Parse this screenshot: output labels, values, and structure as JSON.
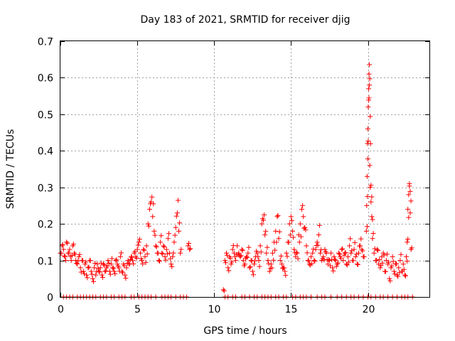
{
  "chart_data": {
    "type": "scatter",
    "title": "Day 183 of 2021, SRMTID for receiver djig",
    "xlabel": "GPS time / hours",
    "ylabel": "SRMTID / TECUs",
    "xlim": [
      0,
      24
    ],
    "ylim": [
      0,
      0.7
    ],
    "xticks": [
      0,
      5,
      10,
      15,
      20
    ],
    "xtick_labels": [
      "0",
      "5",
      "10",
      "15",
      "20"
    ],
    "yticks": [
      0,
      0.1,
      0.2,
      0.3,
      0.4,
      0.5,
      0.6,
      0.7
    ],
    "ytick_labels": [
      "0",
      "0.1",
      "0.2",
      "0.3",
      "0.4",
      "0.5",
      "0.6",
      "0.7"
    ],
    "grid": true,
    "marker": "+",
    "color": "#ff0000",
    "series": [
      {
        "name": "SRMTID",
        "points": [
          [
            0.0,
            0.12
          ],
          [
            0.1,
            0.14
          ],
          [
            0.2,
            0.13
          ],
          [
            0.3,
            0.11
          ],
          [
            0.4,
            0.15
          ],
          [
            0.5,
            0.12
          ],
          [
            0.6,
            0.13
          ],
          [
            0.7,
            0.1
          ],
          [
            0.8,
            0.14
          ],
          [
            0.9,
            0.12
          ],
          [
            1.0,
            0.1
          ],
          [
            1.1,
            0.09
          ],
          [
            1.2,
            0.11
          ],
          [
            1.3,
            0.08
          ],
          [
            1.4,
            0.1
          ],
          [
            1.5,
            0.07
          ],
          [
            1.6,
            0.09
          ],
          [
            1.7,
            0.06
          ],
          [
            1.8,
            0.08
          ],
          [
            1.9,
            0.1
          ],
          [
            2.0,
            0.07
          ],
          [
            2.1,
            0.05
          ],
          [
            2.2,
            0.08
          ],
          [
            2.3,
            0.06
          ],
          [
            2.4,
            0.09
          ],
          [
            2.5,
            0.07
          ],
          [
            2.6,
            0.08
          ],
          [
            2.7,
            0.06
          ],
          [
            2.8,
            0.09
          ],
          [
            2.9,
            0.07
          ],
          [
            3.0,
            0.08
          ],
          [
            3.1,
            0.1
          ],
          [
            3.2,
            0.07
          ],
          [
            3.3,
            0.09
          ],
          [
            3.4,
            0.08
          ],
          [
            3.5,
            0.07
          ],
          [
            3.6,
            0.1
          ],
          [
            3.7,
            0.09
          ],
          [
            3.8,
            0.08
          ],
          [
            3.9,
            0.11
          ],
          [
            4.0,
            0.07
          ],
          [
            4.1,
            0.09
          ],
          [
            4.2,
            0.06
          ],
          [
            4.3,
            0.08
          ],
          [
            4.4,
            0.1
          ],
          [
            4.5,
            0.09
          ],
          [
            4.6,
            0.11
          ],
          [
            4.7,
            0.1
          ],
          [
            4.8,
            0.12
          ],
          [
            4.9,
            0.11
          ],
          [
            5.0,
            0.13
          ],
          [
            5.1,
            0.15
          ],
          [
            5.2,
            0.12
          ],
          [
            5.3,
            0.1
          ],
          [
            5.4,
            0.13
          ],
          [
            5.5,
            0.11
          ],
          [
            5.6,
            0.14
          ],
          [
            5.7,
            0.2
          ],
          [
            5.8,
            0.24
          ],
          [
            5.9,
            0.26
          ],
          [
            6.0,
            0.22
          ],
          [
            6.1,
            0.18
          ],
          [
            6.2,
            0.14
          ],
          [
            6.3,
            0.12
          ],
          [
            6.4,
            0.1
          ],
          [
            6.5,
            0.15
          ],
          [
            6.6,
            0.12
          ],
          [
            6.7,
            0.14
          ],
          [
            6.8,
            0.11
          ],
          [
            6.9,
            0.13
          ],
          [
            7.0,
            0.16
          ],
          [
            7.1,
            0.12
          ],
          [
            7.2,
            0.09
          ],
          [
            7.3,
            0.11
          ],
          [
            7.4,
            0.15
          ],
          [
            7.5,
            0.19
          ],
          [
            7.6,
            0.23
          ],
          [
            7.7,
            0.18
          ],
          [
            7.8,
            0.12
          ],
          [
            8.3,
            0.14
          ],
          [
            8.4,
            0.13
          ],
          [
            10.6,
            0.02
          ],
          [
            10.7,
            0.1
          ],
          [
            10.8,
            0.12
          ],
          [
            10.9,
            0.08
          ],
          [
            11.0,
            0.11
          ],
          [
            11.1,
            0.09
          ],
          [
            11.2,
            0.13
          ],
          [
            11.3,
            0.12
          ],
          [
            11.4,
            0.1
          ],
          [
            11.5,
            0.14
          ],
          [
            11.6,
            0.12
          ],
          [
            11.7,
            0.11
          ],
          [
            11.8,
            0.13
          ],
          [
            11.9,
            0.1
          ],
          [
            12.0,
            0.09
          ],
          [
            12.1,
            0.11
          ],
          [
            12.2,
            0.12
          ],
          [
            12.3,
            0.08
          ],
          [
            12.4,
            0.1
          ],
          [
            12.5,
            0.07
          ],
          [
            12.6,
            0.09
          ],
          [
            12.7,
            0.11
          ],
          [
            12.8,
            0.12
          ],
          [
            12.9,
            0.1
          ],
          [
            13.0,
            0.14
          ],
          [
            13.1,
            0.2
          ],
          [
            13.2,
            0.21
          ],
          [
            13.3,
            0.17
          ],
          [
            13.4,
            0.12
          ],
          [
            13.5,
            0.1
          ],
          [
            13.6,
            0.07
          ],
          [
            13.7,
            0.09
          ],
          [
            13.8,
            0.12
          ],
          [
            13.9,
            0.15
          ],
          [
            14.0,
            0.18
          ],
          [
            14.1,
            0.22
          ],
          [
            14.2,
            0.16
          ],
          [
            14.3,
            0.1
          ],
          [
            14.4,
            0.09
          ],
          [
            14.5,
            0.08
          ],
          [
            14.6,
            0.07
          ],
          [
            14.7,
            0.12
          ],
          [
            14.8,
            0.15
          ],
          [
            14.9,
            0.2
          ],
          [
            15.0,
            0.22
          ],
          [
            15.1,
            0.18
          ],
          [
            15.2,
            0.13
          ],
          [
            15.3,
            0.11
          ],
          [
            15.4,
            0.12
          ],
          [
            15.5,
            0.17
          ],
          [
            15.6,
            0.2
          ],
          [
            15.7,
            0.24
          ],
          [
            15.8,
            0.22
          ],
          [
            15.9,
            0.19
          ],
          [
            16.0,
            0.14
          ],
          [
            16.1,
            0.1
          ],
          [
            16.2,
            0.09
          ],
          [
            16.3,
            0.11
          ],
          [
            16.4,
            0.12
          ],
          [
            16.5,
            0.1
          ],
          [
            16.6,
            0.13
          ],
          [
            16.7,
            0.15
          ],
          [
            16.8,
            0.17
          ],
          [
            16.9,
            0.12
          ],
          [
            17.0,
            0.1
          ],
          [
            17.1,
            0.11
          ],
          [
            17.2,
            0.13
          ],
          [
            17.3,
            0.12
          ],
          [
            17.4,
            0.09
          ],
          [
            17.5,
            0.1
          ],
          [
            17.6,
            0.12
          ],
          [
            17.7,
            0.08
          ],
          [
            17.8,
            0.11
          ],
          [
            17.9,
            0.1
          ],
          [
            18.0,
            0.09
          ],
          [
            18.1,
            0.12
          ],
          [
            18.2,
            0.11
          ],
          [
            18.3,
            0.13
          ],
          [
            18.4,
            0.1
          ],
          [
            18.5,
            0.12
          ],
          [
            18.6,
            0.09
          ],
          [
            18.7,
            0.11
          ],
          [
            18.8,
            0.14
          ],
          [
            18.9,
            0.12
          ],
          [
            19.0,
            0.1
          ],
          [
            19.1,
            0.13
          ],
          [
            19.2,
            0.11
          ],
          [
            19.3,
            0.09
          ],
          [
            19.4,
            0.12
          ],
          [
            19.5,
            0.14
          ],
          [
            19.6,
            0.13
          ],
          [
            19.7,
            0.11
          ],
          [
            19.9,
            0.18
          ],
          [
            19.92,
            0.25
          ],
          [
            19.95,
            0.33
          ],
          [
            19.97,
            0.42
          ],
          [
            20.0,
            0.46
          ],
          [
            20.02,
            0.52
          ],
          [
            20.05,
            0.57
          ],
          [
            20.07,
            0.61
          ],
          [
            20.1,
            0.58
          ],
          [
            20.12,
            0.36
          ],
          [
            20.15,
            0.3
          ],
          [
            20.2,
            0.26
          ],
          [
            20.25,
            0.22
          ],
          [
            20.3,
            0.16
          ],
          [
            20.4,
            0.12
          ],
          [
            20.5,
            0.1
          ],
          [
            20.6,
            0.13
          ],
          [
            20.7,
            0.09
          ],
          [
            20.8,
            0.08
          ],
          [
            20.9,
            0.11
          ],
          [
            21.0,
            0.12
          ],
          [
            21.1,
            0.07
          ],
          [
            21.2,
            0.1
          ],
          [
            21.3,
            0.09
          ],
          [
            21.4,
            0.05
          ],
          [
            21.5,
            0.08
          ],
          [
            21.6,
            0.11
          ],
          [
            21.7,
            0.07
          ],
          [
            21.8,
            0.09
          ],
          [
            21.9,
            0.06
          ],
          [
            22.0,
            0.08
          ],
          [
            22.1,
            0.1
          ],
          [
            22.2,
            0.07
          ],
          [
            22.3,
            0.09
          ],
          [
            22.4,
            0.06
          ],
          [
            22.5,
            0.11
          ],
          [
            22.55,
            0.15
          ],
          [
            22.6,
            0.24
          ],
          [
            22.65,
            0.28
          ],
          [
            22.7,
            0.31
          ],
          [
            22.75,
            0.23
          ],
          [
            22.8,
            0.13
          ]
        ]
      }
    ],
    "zero_rows": [
      [
        0.2,
        0.4,
        0.6,
        0.8,
        1.1,
        1.3,
        1.5,
        1.7,
        1.9,
        2.1,
        2.3,
        2.6,
        2.8,
        3.0,
        3.3,
        3.5,
        3.8,
        4.0,
        4.2,
        4.6,
        4.8,
        5.1,
        5.3,
        5.5,
        5.7,
        5.9,
        6.2,
        6.6,
        6.8,
        7.0,
        7.2,
        7.5,
        7.8,
        8.0,
        8.2
      ],
      [
        10.7,
        10.9,
        11.2,
        11.4,
        11.8,
        12.0,
        12.3,
        12.6,
        12.8,
        13.1,
        13.3,
        13.5,
        13.7,
        14.0,
        14.2,
        14.5,
        14.7,
        15.1,
        15.3,
        15.6,
        15.8,
        16.0,
        16.3,
        16.7,
        17.0,
        17.2,
        17.6,
        18.0,
        18.3,
        18.6,
        18.9,
        19.1,
        19.4,
        19.7,
        20.0,
        20.2,
        20.5,
        20.8,
        21.0,
        21.3,
        21.6,
        21.9,
        22.2,
        22.4,
        22.6,
        22.9
      ]
    ]
  }
}
